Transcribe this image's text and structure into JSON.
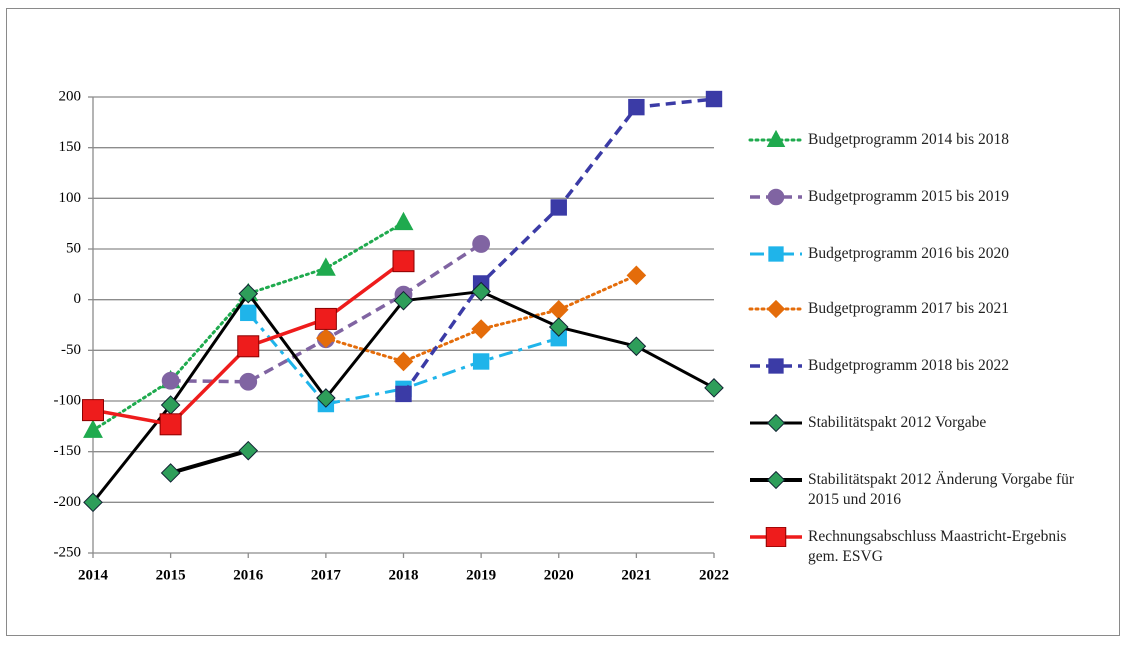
{
  "chart_data": {
    "type": "line",
    "categories": [
      "2014",
      "2015",
      "2016",
      "2017",
      "2018",
      "2019",
      "2020",
      "2021",
      "2022"
    ],
    "ylim": [
      -250,
      200
    ],
    "yticks": [
      -250,
      -200,
      -150,
      -100,
      -50,
      0,
      50,
      100,
      150,
      200
    ],
    "grid": true,
    "series": [
      {
        "name": "Budgetprogramm 2014 bis 2018",
        "color": "#1faa4e",
        "marker": "triangle",
        "line_style": "dotted",
        "values": [
          -129,
          -80,
          6,
          31,
          76,
          null,
          null,
          null,
          null
        ]
      },
      {
        "name": "Budgetprogramm 2015 bis 2019",
        "color": "#8064a2",
        "marker": "circle",
        "line_style": "dashed",
        "values": [
          null,
          -80,
          -81,
          -39,
          5,
          55,
          null,
          null,
          null
        ]
      },
      {
        "name": "Budgetprogramm 2016 bis 2020",
        "color": "#1fb4ea",
        "marker": "square",
        "line_style": "dashdot",
        "values": [
          null,
          null,
          -13,
          -103,
          -88,
          -61,
          -38,
          null,
          null
        ]
      },
      {
        "name": "Budgetprogramm 2017 bis 2021",
        "color": "#e46c0a",
        "marker": "diamond",
        "line_style": "dotted",
        "values": [
          null,
          null,
          null,
          -38,
          -61,
          -29,
          -10,
          24,
          null
        ]
      },
      {
        "name": "Budgetprogramm 2018 bis 2022",
        "color": "#3b3ba6",
        "marker": "square",
        "line_style": "dashed",
        "values": [
          null,
          null,
          null,
          null,
          -93,
          16,
          91,
          190,
          198
        ]
      },
      {
        "name": "Stabilitätspakt 2012 Vorgabe",
        "color": "#000000",
        "marker_color": "#2e9e5a",
        "marker": "diamond",
        "line_style": "solid",
        "values": [
          -200,
          -104,
          6,
          -97,
          -1,
          8,
          -27,
          -46,
          -87
        ]
      },
      {
        "name": "Stabilitätspakt 2012 Änderung Vorgabe für 2015 und 2016",
        "color": "#000000",
        "marker_color": "#2e9e5a",
        "marker": "diamond",
        "line_style": "solid",
        "values": [
          null,
          -171,
          -149,
          null,
          null,
          null,
          null,
          null,
          null
        ]
      },
      {
        "name": "Rechnungsabschluss Maastricht-Ergebnis gem. ESVG",
        "color": "#ee1c1c",
        "marker": "square",
        "line_style": "solid",
        "values": [
          -109,
          -123,
          -46,
          -19,
          38,
          null,
          null,
          null,
          null
        ]
      }
    ]
  }
}
